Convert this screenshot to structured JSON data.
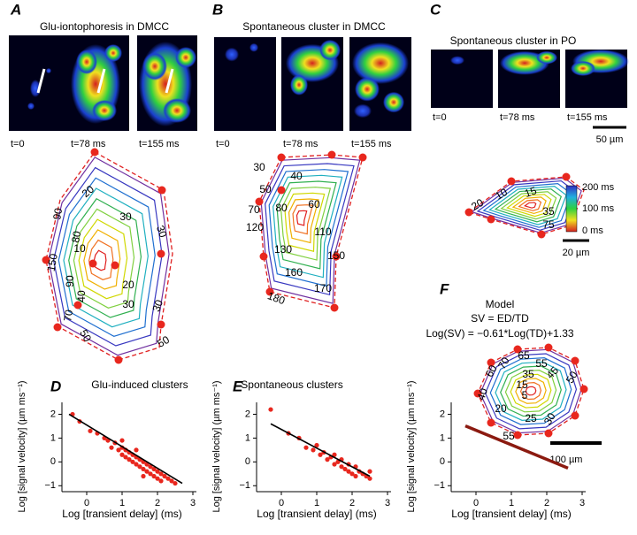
{
  "panels": {
    "labels": [
      "A",
      "B",
      "C",
      "D",
      "E",
      "F"
    ]
  },
  "images": {
    "titles": [
      "Glu-iontophoresis in DMCC",
      "Spontaneous cluster in DMCC",
      "Spontaneous cluster in PO"
    ],
    "captions": [
      [
        "t=0",
        "t=78 ms",
        "t=155 ms"
      ],
      [
        "t=0",
        "t=78 ms",
        "t=155 ms"
      ],
      [
        "t=0",
        "t=78 ms",
        "t=155 ms"
      ]
    ],
    "scale_bar": "50 µm"
  },
  "maps": {
    "A": [
      20,
      30,
      90,
      80,
      10,
      150,
      30,
      90,
      40,
      20,
      30,
      70,
      30,
      50,
      50
    ],
    "B": [
      30,
      40,
      50,
      70,
      80,
      60,
      120,
      110,
      130,
      150,
      160,
      170,
      180
    ],
    "C": [
      10,
      15,
      20,
      35,
      75
    ],
    "F": [
      65,
      70,
      60,
      55,
      45,
      50,
      35,
      15,
      5,
      40,
      20,
      25,
      30,
      55
    ],
    "colorbar": [
      "200 ms",
      "100 ms",
      "0 ms"
    ],
    "scale_bar_c": "20 µm",
    "scale_bar_f": "100 µm"
  },
  "chart_data": [
    {
      "type": "scatter",
      "title": "Glu-induced clusters",
      "x_label": "Log [transient delay] (ms)",
      "y_label": "Log [signal velocity] (µm ms⁻¹)",
      "xlim": [
        -0.7,
        3.1
      ],
      "ylim": [
        -1.25,
        2.5
      ],
      "xticks": [
        0,
        1,
        2,
        3
      ],
      "yticks": [
        {
          "value": -1,
          "label": "−1"
        },
        0,
        1,
        2
      ],
      "series": [
        {
          "style": "points",
          "color": "#e8271e",
          "x": [
            -0.4,
            -0.2,
            0.1,
            0.3,
            0.5,
            0.6,
            0.7,
            0.8,
            0.9,
            1.0,
            1.0,
            1.1,
            1.1,
            1.2,
            1.2,
            1.3,
            1.3,
            1.4,
            1.4,
            1.5,
            1.5,
            1.6,
            1.6,
            1.7,
            1.7,
            1.8,
            1.8,
            1.9,
            1.9,
            2.0,
            2.0,
            2.1,
            2.1,
            2.2,
            2.3,
            2.4,
            2.5,
            1.0,
            1.4,
            1.6
          ],
          "values": [
            2.0,
            1.7,
            1.3,
            1.2,
            1.0,
            0.9,
            0.6,
            0.8,
            0.5,
            0.6,
            0.3,
            0.5,
            0.2,
            0.4,
            0.1,
            0.3,
            0.0,
            0.2,
            -0.1,
            0.1,
            -0.2,
            0.0,
            -0.3,
            -0.1,
            -0.4,
            -0.2,
            -0.5,
            -0.3,
            -0.6,
            -0.4,
            -0.7,
            -0.5,
            -0.8,
            -0.6,
            -0.7,
            -0.8,
            -0.9,
            0.9,
            0.5,
            -0.6
          ]
        },
        {
          "style": "line",
          "color": "#000000",
          "x": [
            -0.5,
            2.7
          ],
          "values": [
            2.0,
            -0.9
          ]
        }
      ]
    },
    {
      "type": "scatter",
      "title": "Spontaneous clusters",
      "x_label": "Log [transient delay] (ms)",
      "y_label": "Log [signal velocity] (µm ms⁻¹)",
      "xlim": [
        -0.7,
        3.1
      ],
      "ylim": [
        -1.25,
        2.5
      ],
      "xticks": [
        0,
        1,
        2,
        3
      ],
      "yticks": [
        {
          "value": -1,
          "label": "−1"
        },
        0,
        1,
        2
      ],
      "series": [
        {
          "style": "points",
          "color": "#e8271e",
          "x": [
            -0.3,
            0.2,
            0.5,
            0.7,
            0.9,
            1.0,
            1.1,
            1.2,
            1.3,
            1.4,
            1.5,
            1.5,
            1.6,
            1.7,
            1.7,
            1.8,
            1.9,
            1.9,
            2.0,
            2.1,
            2.1,
            2.2,
            2.3,
            2.4,
            2.5,
            2.5
          ],
          "values": [
            2.2,
            1.2,
            1.0,
            0.6,
            0.5,
            0.7,
            0.3,
            0.4,
            0.1,
            0.2,
            -0.1,
            0.3,
            0.0,
            -0.2,
            0.1,
            -0.3,
            -0.1,
            -0.4,
            -0.5,
            -0.2,
            -0.6,
            -0.4,
            -0.5,
            -0.6,
            -0.7,
            -0.4
          ]
        },
        {
          "style": "line",
          "color": "#000000",
          "x": [
            -0.3,
            2.5
          ],
          "values": [
            1.6,
            -0.6
          ]
        }
      ]
    },
    {
      "type": "scatter",
      "title": "Model",
      "subtitle": "SV = ED/TD",
      "annotation": "Log(SV) = −0.61*Log(TD)+1.33",
      "x_label": "Log [transient delay] (ms)",
      "y_label": "Log [signal velocity] (µm ms⁻¹)",
      "xlim": [
        -0.7,
        3.1
      ],
      "ylim": [
        -1.25,
        2.5
      ],
      "xticks": [
        0,
        1,
        2,
        3
      ],
      "yticks": [
        {
          "value": -1,
          "label": "−1"
        },
        0,
        1,
        2
      ],
      "series": [
        {
          "style": "line",
          "color": "#8b1a10",
          "x": [
            -0.3,
            2.6
          ],
          "values": [
            1.51,
            -0.26
          ]
        }
      ]
    }
  ]
}
